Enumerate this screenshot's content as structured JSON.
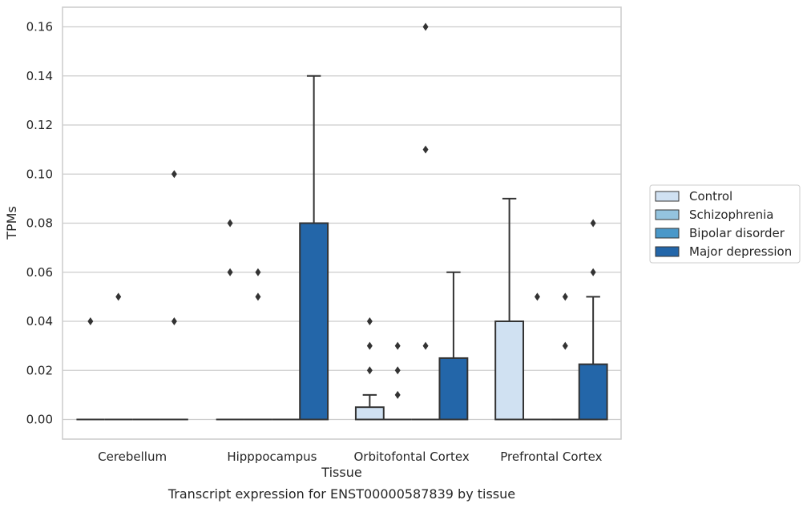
{
  "chart_data": {
    "type": "box",
    "caption": "Transcript expression for ENST00000587839 by tissue",
    "xlabel": "Tissue",
    "ylabel": "TPMs",
    "ylim": [
      -0.008,
      0.168
    ],
    "yticks": [
      0.0,
      0.02,
      0.04,
      0.06,
      0.08,
      0.1,
      0.12,
      0.14,
      0.16
    ],
    "ytick_labels": [
      "0.00",
      "0.02",
      "0.04",
      "0.06",
      "0.08",
      "0.10",
      "0.12",
      "0.14",
      "0.16"
    ],
    "grid": true,
    "legend_position": "right",
    "categories": [
      "Cerebellum",
      "Hipppocampus",
      "Orbitofontal Cortex",
      "Prefrontal Cortex"
    ],
    "series": [
      {
        "name": "Control",
        "color": "#d0e1f2"
      },
      {
        "name": "Schizophrenia",
        "color": "#94c4df"
      },
      {
        "name": "Bipolar disorder",
        "color": "#4a98c9"
      },
      {
        "name": "Major depression",
        "color": "#2366a9"
      }
    ],
    "boxes": [
      [
        {
          "q1": 0,
          "median": 0,
          "q3": 0,
          "whisker_low": 0,
          "whisker_high": 0,
          "outliers": [
            0.04
          ]
        },
        {
          "q1": 0,
          "median": 0,
          "q3": 0,
          "whisker_low": 0,
          "whisker_high": 0,
          "outliers": [
            0.05
          ]
        },
        {
          "q1": 0,
          "median": 0,
          "q3": 0,
          "whisker_low": 0,
          "whisker_high": 0,
          "outliers": []
        },
        {
          "q1": 0,
          "median": 0,
          "q3": 0,
          "whisker_low": 0,
          "whisker_high": 0,
          "outliers": [
            0.04,
            0.1
          ]
        }
      ],
      [
        {
          "q1": 0,
          "median": 0,
          "q3": 0,
          "whisker_low": 0,
          "whisker_high": 0,
          "outliers": [
            0.06,
            0.08
          ]
        },
        {
          "q1": 0,
          "median": 0,
          "q3": 0,
          "whisker_low": 0,
          "whisker_high": 0,
          "outliers": [
            0.05,
            0.06
          ]
        },
        {
          "q1": 0,
          "median": 0,
          "q3": 0,
          "whisker_low": 0,
          "whisker_high": 0,
          "outliers": []
        },
        {
          "q1": 0,
          "median": 0,
          "q3": 0.08,
          "whisker_low": 0,
          "whisker_high": 0.14,
          "outliers": []
        }
      ],
      [
        {
          "q1": 0,
          "median": 0,
          "q3": 0.005,
          "whisker_low": 0,
          "whisker_high": 0.01,
          "outliers": [
            0.02,
            0.03,
            0.04
          ]
        },
        {
          "q1": 0,
          "median": 0,
          "q3": 0,
          "whisker_low": 0,
          "whisker_high": 0,
          "outliers": [
            0.01,
            0.02,
            0.03
          ]
        },
        {
          "q1": 0,
          "median": 0,
          "q3": 0,
          "whisker_low": 0,
          "whisker_high": 0,
          "outliers": [
            0.03,
            0.11,
            0.16
          ]
        },
        {
          "q1": 0,
          "median": 0,
          "q3": 0.025,
          "whisker_low": 0,
          "whisker_high": 0.06,
          "outliers": []
        }
      ],
      [
        {
          "q1": 0,
          "median": 0,
          "q3": 0.04,
          "whisker_low": 0,
          "whisker_high": 0.09,
          "outliers": []
        },
        {
          "q1": 0,
          "median": 0,
          "q3": 0,
          "whisker_low": 0,
          "whisker_high": 0,
          "outliers": [
            0.05
          ]
        },
        {
          "q1": 0,
          "median": 0,
          "q3": 0,
          "whisker_low": 0,
          "whisker_high": 0,
          "outliers": [
            0.03,
            0.05
          ]
        },
        {
          "q1": 0,
          "median": 0,
          "q3": 0.0225,
          "whisker_low": 0,
          "whisker_high": 0.05,
          "outliers": [
            0.06,
            0.08
          ]
        }
      ]
    ]
  },
  "style": {
    "grid_color": "#cccccc",
    "frame_color": "#cccccc",
    "edge_color": "#333333",
    "text_color": "#262626",
    "legend_border": "#cccccc"
  }
}
